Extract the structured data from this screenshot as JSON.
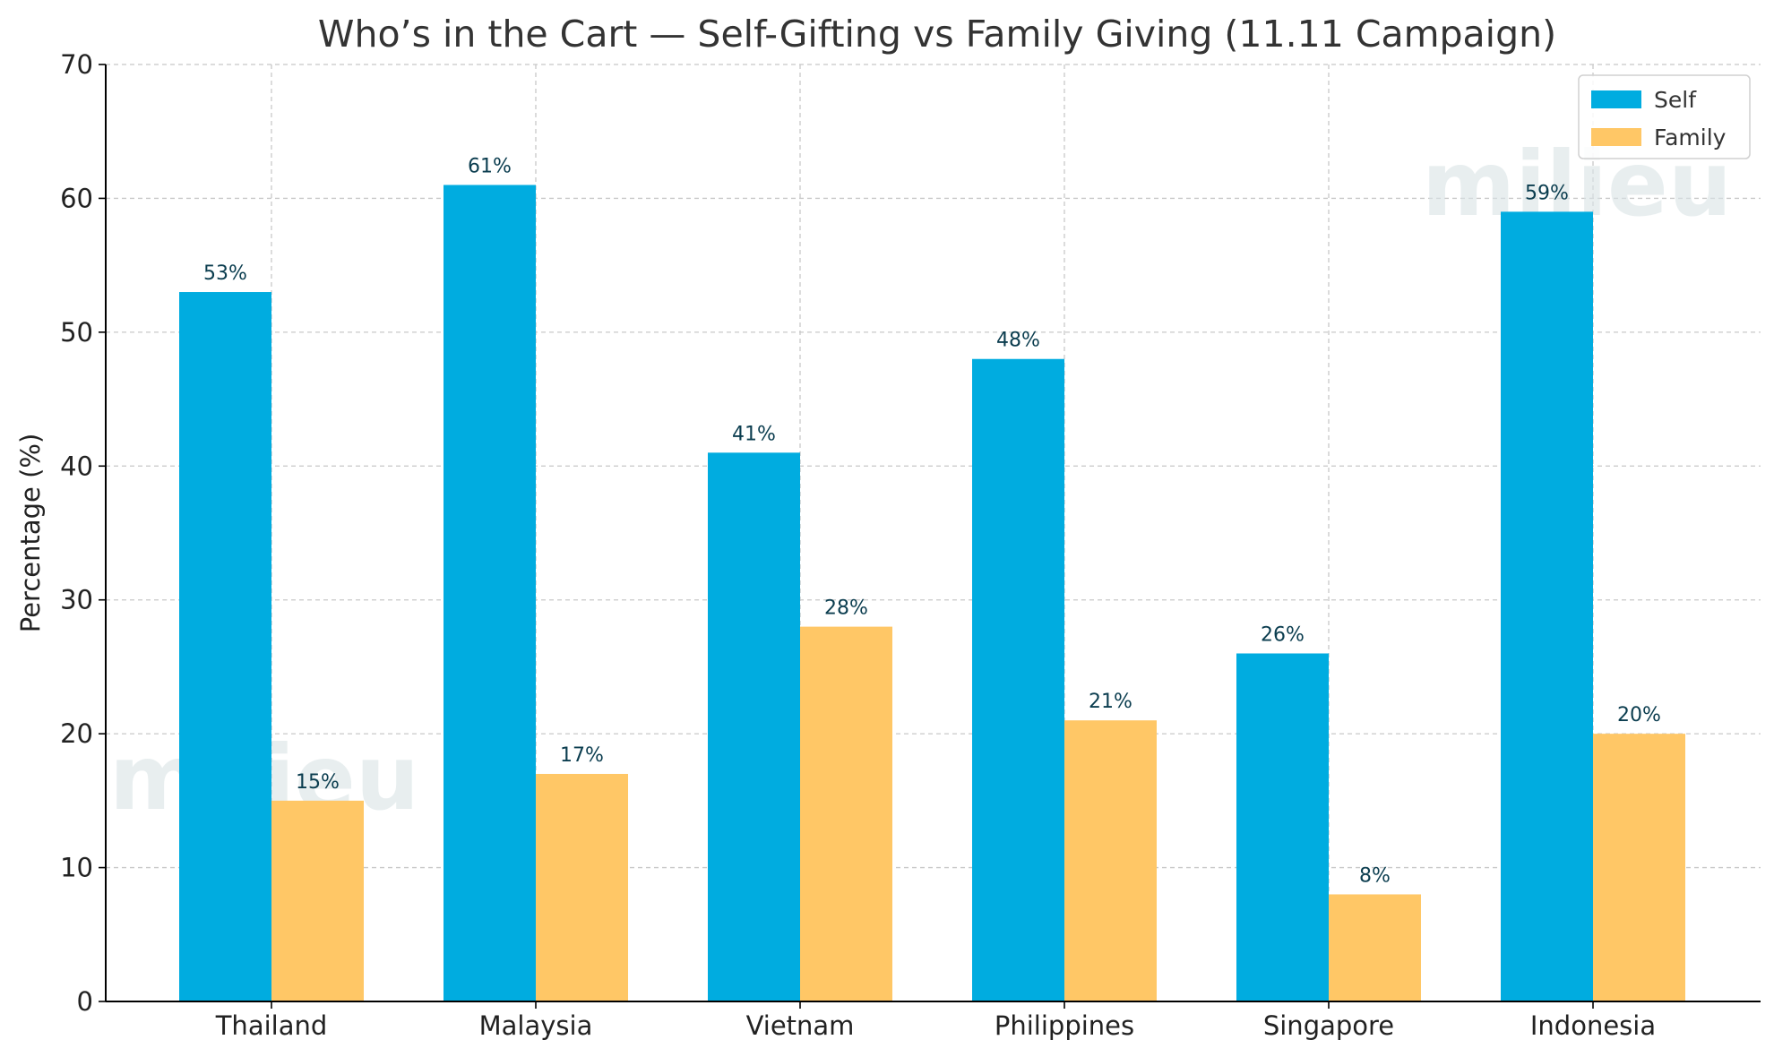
{
  "chart_data": {
    "type": "bar",
    "title": "Who’s in the Cart — Self-Gifting vs Family Giving (11.11 Campaign)",
    "xlabel": "",
    "ylabel": "Percentage (%)",
    "ylim": [
      0,
      70
    ],
    "yticks": [
      0,
      10,
      20,
      30,
      40,
      50,
      60,
      70
    ],
    "grid": true,
    "legend_position": "top-right",
    "categories": [
      "Thailand",
      "Malaysia",
      "Vietnam",
      "Philippines",
      "Singapore",
      "Indonesia"
    ],
    "series": [
      {
        "name": "Self",
        "color": "#00ace0",
        "values": [
          53,
          61,
          41,
          48,
          26,
          59
        ],
        "labels": [
          "53%",
          "61%",
          "41%",
          "48%",
          "26%",
          "59%"
        ]
      },
      {
        "name": "Family",
        "color": "#ffc766",
        "values": [
          15,
          17,
          28,
          21,
          8,
          20
        ],
        "labels": [
          "15%",
          "17%",
          "28%",
          "21%",
          "8%",
          "20%"
        ]
      }
    ],
    "watermark": "milieu"
  }
}
